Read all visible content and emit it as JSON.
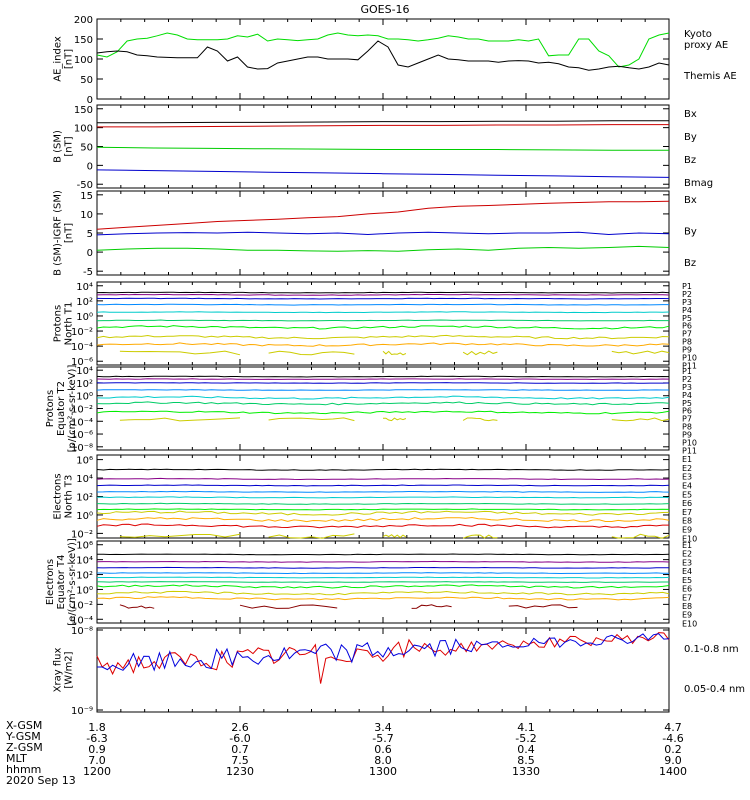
{
  "title": "GOES-16",
  "chart_data": [
    {
      "type": "line",
      "id": "ae",
      "ylabel": [
        "AE_index",
        "[nT]"
      ],
      "yticks": [
        "200",
        "150",
        "100",
        "50",
        "0"
      ],
      "ylim": [
        0,
        200
      ],
      "series": [
        {
          "name": "Kyoto\nproxy AE",
          "color": "#00dd00",
          "values": [
            110,
            105,
            118,
            145,
            150,
            152,
            158,
            165,
            160,
            150,
            148,
            148,
            148,
            150,
            158,
            155,
            162,
            145,
            150,
            148,
            146,
            148,
            150,
            160,
            165,
            160,
            158,
            160,
            158,
            150,
            150,
            148,
            145,
            148,
            152,
            158,
            155,
            150,
            150,
            145,
            145,
            145,
            148,
            145,
            150,
            108,
            110,
            110,
            150,
            150,
            120,
            108,
            80,
            85,
            100,
            150,
            160,
            165
          ]
        },
        {
          "name": "Themis AE",
          "color": "#000000",
          "values": [
            115,
            118,
            120,
            118,
            110,
            108,
            105,
            104,
            103,
            103,
            103,
            130,
            120,
            95,
            105,
            80,
            75,
            76,
            90,
            95,
            100,
            105,
            105,
            100,
            100,
            100,
            98,
            120,
            145,
            130,
            85,
            80,
            90,
            100,
            110,
            100,
            98,
            95,
            95,
            95,
            92,
            95,
            96,
            95,
            90,
            92,
            88,
            80,
            78,
            72,
            75,
            80,
            82,
            78,
            75,
            80,
            90,
            85
          ]
        }
      ]
    },
    {
      "type": "line",
      "id": "bsm",
      "ylabel": [
        "B (SM)",
        "[nT]"
      ],
      "yticks": [
        "150",
        "100",
        "50",
        "0",
        "-50"
      ],
      "ylim": [
        -60,
        160
      ],
      "series": [
        {
          "name": "Bx",
          "color": "#0000cc",
          "values": [
            -12,
            -14,
            -16,
            -18,
            -20,
            -22,
            -24,
            -26,
            -28,
            -30,
            -32
          ]
        },
        {
          "name": "By",
          "color": "#00cc00",
          "values": [
            48,
            46,
            45,
            44,
            43,
            42,
            42,
            42,
            41,
            40,
            40
          ]
        },
        {
          "name": "Bz",
          "color": "#cc0000",
          "values": [
            102,
            102,
            103,
            104,
            105,
            106,
            106,
            107,
            107,
            108,
            108
          ]
        },
        {
          "name": "Bmag",
          "color": "#000000",
          "values": [
            113,
            113,
            114,
            114,
            115,
            116,
            116,
            117,
            117,
            118,
            118
          ]
        }
      ]
    },
    {
      "type": "line",
      "id": "bigrf",
      "ylabel": [
        "B (SM)-IGRF (SM)",
        "[nT]"
      ],
      "yticks": [
        "15",
        "10",
        "5",
        "0",
        "-5"
      ],
      "ylim": [
        -6,
        16
      ],
      "series": [
        {
          "name": "Bx",
          "color": "#0000cc",
          "values": [
            4.5,
            4.8,
            5.0,
            5.1,
            5.0,
            5.2,
            5.0,
            4.8,
            5.0,
            4.6,
            5.0,
            5.2,
            5.0,
            4.8,
            5.0,
            5.0,
            5.2,
            4.6,
            5.0,
            4.8
          ]
        },
        {
          "name": "By",
          "color": "#00cc00",
          "values": [
            0.5,
            0.8,
            1.0,
            1.0,
            0.8,
            0.5,
            0.5,
            0.3,
            0.2,
            0.4,
            0.2,
            0.6,
            0.8,
            0.5,
            1.0,
            1.2,
            1.0,
            1.2,
            1.5,
            1.2
          ]
        },
        {
          "name": "Bz",
          "color": "#cc0000",
          "values": [
            6,
            6.5,
            7,
            7.5,
            8,
            8.3,
            8.6,
            9,
            9.3,
            10,
            10.5,
            11.5,
            12,
            12.2,
            12.5,
            12.8,
            13,
            13.2,
            13.2,
            13.3
          ]
        }
      ]
    },
    {
      "type": "line",
      "id": "pn",
      "ylabel": [
        "Protons",
        "North T1"
      ],
      "yticks": [
        "10⁴",
        "10²",
        "10⁰",
        "10⁻²",
        "10⁻⁴",
        "10⁻⁶"
      ],
      "ylim": [
        -6.5,
        4.5
      ],
      "legend": [
        "P1",
        "P2",
        "P3",
        "P4",
        "P5",
        "P6",
        "P7",
        "P8",
        "P9",
        "P10",
        "P11"
      ],
      "colors": [
        "#000000",
        "#880088",
        "#0000cc",
        "#0088ff",
        "#00cccc",
        "#00cc66",
        "#00ee00",
        "#cccc00",
        "#ffaa00",
        "#dd0000",
        "#880000"
      ],
      "levels": [
        3.1,
        2.8,
        2.3,
        1.5,
        0.5,
        -0.6,
        -1.5,
        -2.8,
        -3.8
      ]
    },
    {
      "type": "line",
      "id": "pe",
      "ylabel": [
        "Protons",
        "Equator T2",
        "[p/(cm²-s-sr-keV)]"
      ],
      "yticks": [
        "10⁴",
        "10²",
        "10⁰",
        "10⁻²",
        "10⁻⁴",
        "10⁻⁶",
        "10⁻⁸"
      ],
      "ylim": [
        -8.5,
        4.5
      ],
      "legend": [
        "P1",
        "P2",
        "P3",
        "P4",
        "P5",
        "P6",
        "P7",
        "P8",
        "P9",
        "P10",
        "P11"
      ],
      "colors": [
        "#000000",
        "#880088",
        "#0000cc",
        "#0088ff",
        "#00cccc",
        "#00cc66",
        "#00ee00",
        "#cccc00",
        "#ffaa00",
        "#dd0000",
        "#880000"
      ],
      "levels": [
        3.0,
        2.6,
        2.0,
        0.9,
        -0.3,
        -1.2,
        -2.6
      ]
    },
    {
      "type": "line",
      "id": "en",
      "ylabel": [
        "Electrons",
        "North T3"
      ],
      "yticks": [
        "10⁶",
        "10⁴",
        "10²",
        "10⁰",
        "10⁻²"
      ],
      "ylim": [
        -2.5,
        6.5
      ],
      "legend": [
        "E1",
        "E2",
        "E3",
        "E4",
        "E5",
        "E6",
        "E7",
        "E8",
        "E9",
        "E10"
      ],
      "colors": [
        "#000000",
        "#880088",
        "#0000cc",
        "#0088ff",
        "#00cccc",
        "#00cc66",
        "#00ee00",
        "#cccc00",
        "#ffaa00",
        "#dd0000"
      ],
      "levels": [
        4.9,
        3.9,
        3.2,
        2.5,
        1.9,
        1.2,
        0.6,
        0.2,
        -0.5,
        -1.2
      ]
    },
    {
      "type": "line",
      "id": "ee",
      "ylabel": [
        "Electrons",
        "Equator T4",
        "[e/(cm²-s-sr-keV)]"
      ],
      "yticks": [
        "10⁶",
        "10⁴",
        "10²",
        "10⁰",
        "10⁻²",
        "10⁻⁴"
      ],
      "ylim": [
        -4.5,
        6.5
      ],
      "legend": [
        "E1",
        "E2",
        "E3",
        "E4",
        "E5",
        "E6",
        "E7",
        "E8",
        "E9",
        "E10"
      ],
      "colors": [
        "#000000",
        "#880088",
        "#0000cc",
        "#0088ff",
        "#00cccc",
        "#00cc66",
        "#00ee00",
        "#cccc00",
        "#ffaa00",
        "#dd0000"
      ],
      "levels": [
        4.7,
        3.7,
        2.9,
        2.2,
        1.6,
        1.0,
        0.4,
        -0.5,
        -1.2
      ]
    },
    {
      "type": "line",
      "id": "xray",
      "ylabel": [
        "Xray flux",
        "[W/m2]"
      ],
      "yticks": [
        "10⁻⁸",
        "10⁻⁹"
      ],
      "ylim": [
        -9,
        -8
      ],
      "series": [
        {
          "name": "0.1-0.8 nm",
          "color": "#dd0000"
        },
        {
          "name": "0.05-0.4 nm",
          "color": "#0000dd"
        }
      ]
    }
  ],
  "ephemeris": {
    "row_labels": [
      "X-GSM",
      "Y-GSM",
      "Z-GSM",
      "MLT",
      "hhmm"
    ],
    "columns": [
      [
        "1.8",
        "-6.3",
        "0.9",
        "7.0",
        "1200"
      ],
      [
        "2.6",
        "-6.0",
        "0.7",
        "7.5",
        "1230"
      ],
      [
        "3.4",
        "-5.7",
        "0.6",
        "8.0",
        "1300"
      ],
      [
        "4.1",
        "-5.2",
        "0.4",
        "8.5",
        "1330"
      ],
      [
        "4.7",
        "-4.6",
        "0.2",
        "9.0",
        "1400"
      ]
    ],
    "date": "2020 Sep 13"
  }
}
